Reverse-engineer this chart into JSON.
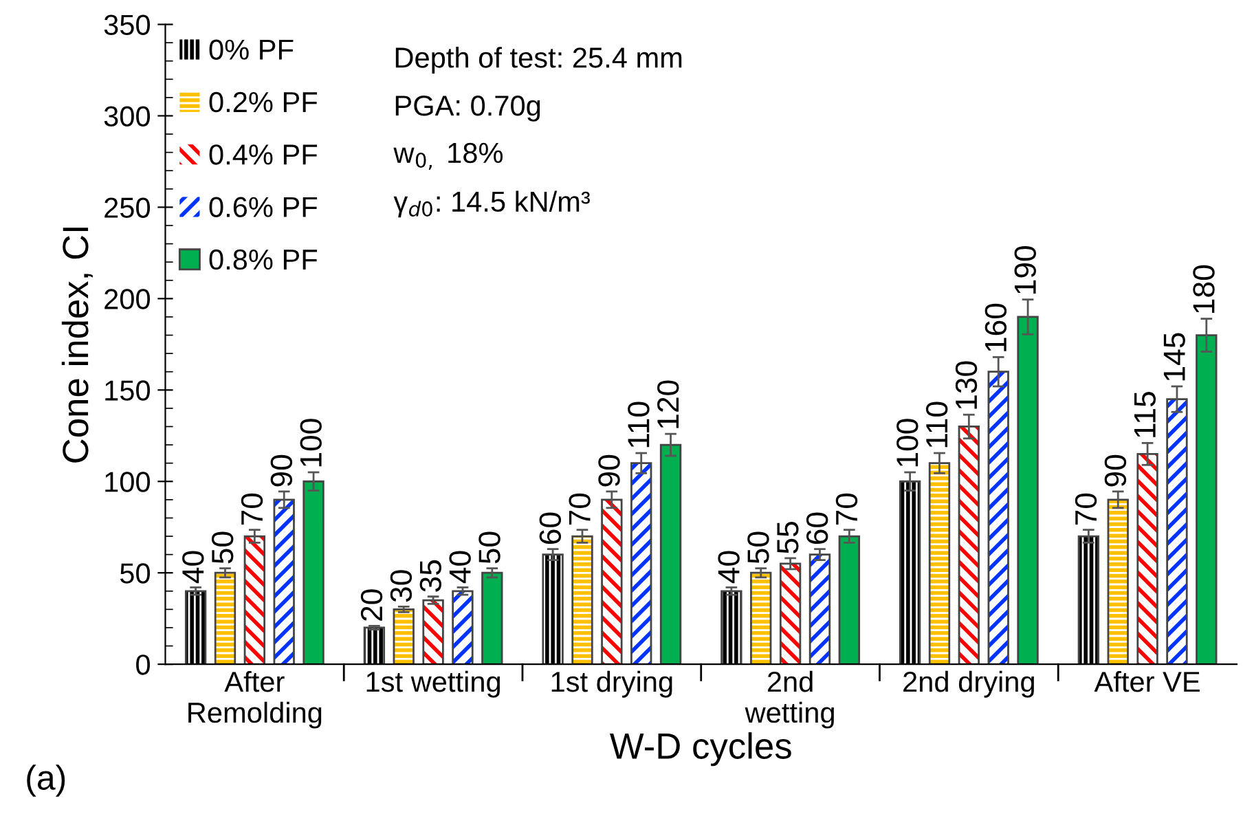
{
  "chart_data": {
    "type": "bar",
    "xlabel": "W-D cycles",
    "ylabel": "Cone index, CI",
    "categories": [
      "After\nRemolding",
      "1st wetting",
      "1st drying",
      "2nd\nwetting",
      "2nd drying",
      "After VE"
    ],
    "series": [
      {
        "name": "0% PF",
        "color": "#000000",
        "values": [
          40,
          20,
          60,
          40,
          100,
          70
        ],
        "errors": [
          2,
          1,
          3,
          2,
          5,
          3.5
        ]
      },
      {
        "name": "0.2% PF",
        "color": "#ffc000",
        "values": [
          50,
          30,
          70,
          50,
          110,
          90
        ],
        "errors": [
          2.5,
          1.5,
          3.5,
          2.5,
          5.5,
          4.5
        ]
      },
      {
        "name": "0.4% PF",
        "color": "#ff0000",
        "values": [
          70,
          35,
          90,
          55,
          130,
          115
        ],
        "errors": [
          3.5,
          2,
          4.5,
          3,
          6.5,
          6
        ]
      },
      {
        "name": "0.6% PF",
        "color": "#0033ff",
        "values": [
          90,
          40,
          110,
          60,
          160,
          145
        ],
        "errors": [
          4.5,
          2,
          5.5,
          3,
          8,
          7
        ]
      },
      {
        "name": "0.8% PF",
        "color": "#00b050",
        "values": [
          100,
          50,
          120,
          70,
          190,
          180
        ],
        "errors": [
          5,
          2.5,
          6,
          3.5,
          9.5,
          9
        ]
      }
    ],
    "ylim": [
      0,
      350
    ],
    "yticks": [
      0,
      50,
      100,
      150,
      200,
      250,
      300,
      350
    ],
    "data_labels": true,
    "legend": "top left",
    "grid": false,
    "annotations": [
      "Depth of test: 25.4 mm",
      "PGA: 0.70g",
      "w$_{0,}$ 18%",
      "γ$_{d0}$: 14.5 kN/m³",
      "(a)"
    ]
  }
}
